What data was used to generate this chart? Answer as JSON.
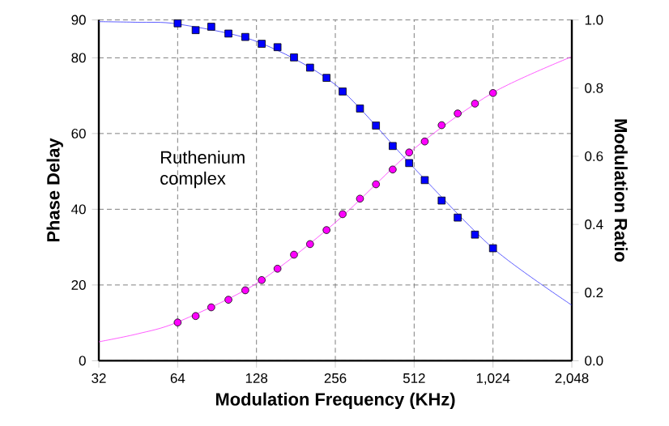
{
  "chart_data": {
    "type": "scatter",
    "xlabel": "Modulation Frequency (KHz)",
    "ylabel": "Phase Delay",
    "y2label": "Modulation Ratio",
    "log": "x",
    "grid": true,
    "xlim": [
      32,
      2048
    ],
    "xticks": [
      32,
      64,
      128,
      256,
      512,
      {
        "value": 1024,
        "label": "1,024"
      },
      {
        "value": 2048,
        "label": "2,048"
      }
    ],
    "ylim": [
      0,
      90
    ],
    "yticks": [
      0,
      20,
      40,
      60,
      80,
      90
    ],
    "y2lim": [
      0,
      1
    ],
    "y2ticks": [
      {
        "value": 0,
        "label": "0.0"
      },
      0.2,
      0.4,
      0.6,
      0.8,
      {
        "value": 1,
        "label": "1.0"
      }
    ],
    "annotations": [
      "Ruthenium complex"
    ],
    "series": [
      {
        "type": "line",
        "color": "#ff33ff",
        "marker": "none",
        "x": [
          32,
          45,
          64,
          128,
          256,
          512,
          1024,
          2048
        ],
        "values": [
          5.0,
          7.1,
          10.2,
          20.4,
          36.5,
          56,
          70.8,
          80.3
        ]
      },
      {
        "color": "#ff00ff",
        "marker": "circle",
        "x": [
          64,
          75,
          86,
          100,
          116,
          134,
          154,
          178,
          205,
          237,
          273,
          318,
          366,
          424,
          490,
          562,
          652,
          751,
          874,
          1024
        ],
        "values": [
          10.1,
          11.8,
          14.1,
          16.1,
          18.6,
          21.3,
          24.3,
          28.0,
          30.8,
          34.5,
          38.7,
          42.8,
          46.6,
          50.5,
          55.0,
          57.9,
          62.2,
          65.3,
          67.9,
          70.7
        ]
      },
      {
        "type": "line",
        "axis": "y2",
        "color": "#3333ff",
        "marker": "none",
        "x": [
          32,
          45,
          64,
          128,
          256,
          512,
          1024,
          2048
        ],
        "values": [
          0.995,
          0.993,
          0.988,
          0.937,
          0.81,
          0.565,
          0.33,
          0.163
        ]
      },
      {
        "axis": "y2",
        "color": "#0000ff",
        "marker": "square",
        "x": [
          64,
          75,
          86,
          100,
          116,
          134,
          154,
          178,
          205,
          237,
          273,
          318,
          366,
          424,
          490,
          562,
          652,
          751,
          874,
          1024
        ],
        "values": [
          0.99,
          0.97,
          0.98,
          0.96,
          0.95,
          0.93,
          0.92,
          0.89,
          0.86,
          0.83,
          0.79,
          0.74,
          0.69,
          0.63,
          0.58,
          0.53,
          0.47,
          0.42,
          0.37,
          0.33
        ]
      }
    ]
  }
}
